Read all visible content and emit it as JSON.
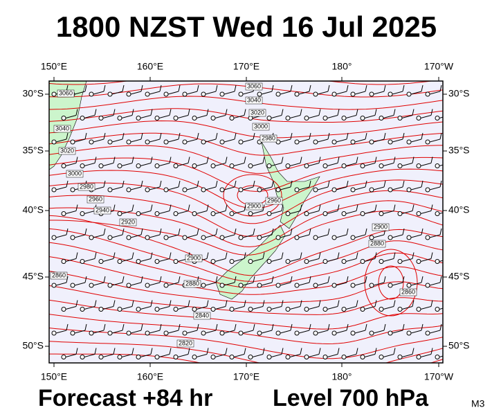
{
  "header": {
    "title": "1800 NZST Wed 16 Jul 2025"
  },
  "map": {
    "lon_labels": [
      "150°E",
      "160°E",
      "170°E",
      "180°",
      "170°W"
    ],
    "lat_labels": [
      "30°S",
      "35°S",
      "40°S",
      "45°S",
      "50°S"
    ],
    "contour_labels": [
      "3060",
      "3040",
      "3020",
      "3000",
      "2980",
      "3060",
      "3040",
      "3020",
      "3000",
      "2980",
      "2960",
      "2940",
      "2920",
      "2900",
      "2880",
      "2860",
      "2840",
      "2820",
      "2900",
      "2880",
      "2860",
      "2900",
      "2960"
    ]
  },
  "footer": {
    "forecast": "Forecast +84 hr",
    "level": "Level 700 hPa",
    "model": "M3"
  }
}
